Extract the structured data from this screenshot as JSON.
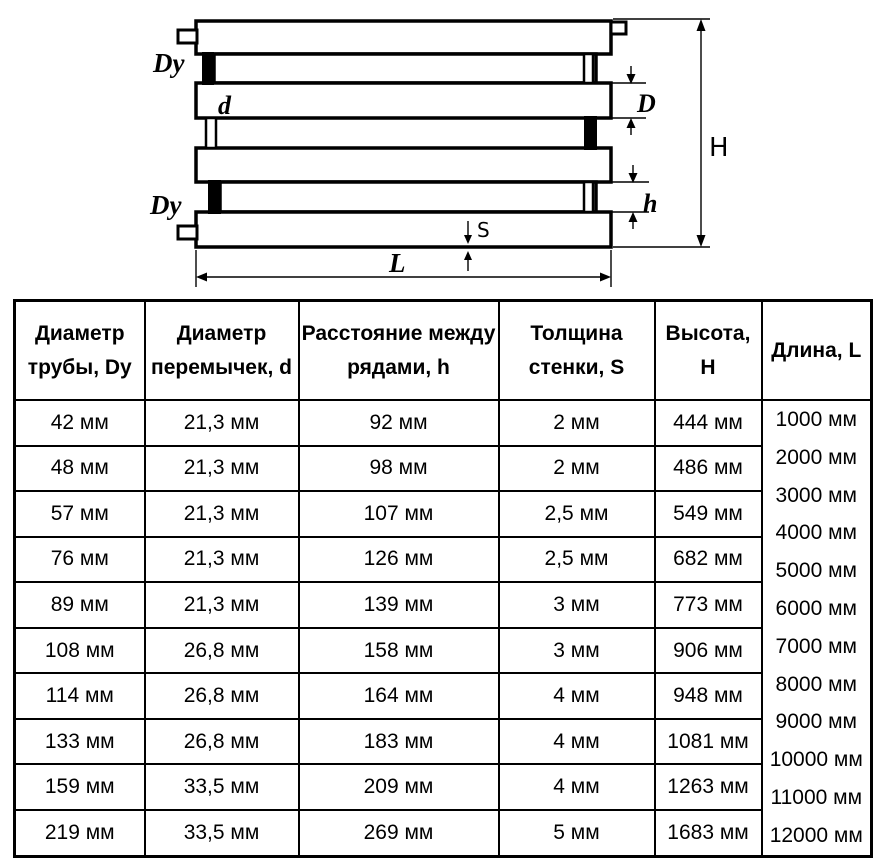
{
  "diagram": {
    "labels": {
      "dy": "Dy",
      "d": "d",
      "D": "D",
      "h": "h",
      "H": "H",
      "S": "S",
      "L": "L"
    }
  },
  "table": {
    "headers": [
      "Диаметр\nтрубы, Dy",
      "Диаметр\nперемычек, d",
      "Расстояние между\nрядами, h",
      "Толщина\nстенки, S",
      "Высота, H",
      "Длина, L"
    ],
    "rows": [
      [
        "42 мм",
        "21,3 мм",
        "92 мм",
        "2 мм",
        "444 мм"
      ],
      [
        "48 мм",
        "21,3 мм",
        "98 мм",
        "2 мм",
        "486 мм"
      ],
      [
        "57 мм",
        "21,3 мм",
        "107 мм",
        "2,5 мм",
        "549 мм"
      ],
      [
        "76 мм",
        "21,3 мм",
        "126 мм",
        "2,5 мм",
        "682 мм"
      ],
      [
        "89 мм",
        "21,3 мм",
        "139 мм",
        "3 мм",
        "773 мм"
      ],
      [
        "108 мм",
        "26,8 мм",
        "158 мм",
        "3 мм",
        "906 мм"
      ],
      [
        "114 мм",
        "26,8 мм",
        "164 мм",
        "4 мм",
        "948 мм"
      ],
      [
        "133 мм",
        "26,8 мм",
        "183 мм",
        "4 мм",
        "1081 мм"
      ],
      [
        "159 мм",
        "33,5 мм",
        "209 мм",
        "4 мм",
        "1263 мм"
      ],
      [
        "219 мм",
        "33,5 мм",
        "269 мм",
        "5 мм",
        "1683 мм"
      ]
    ],
    "lengths": [
      "1000 мм",
      "2000 мм",
      "3000 мм",
      "4000 мм",
      "5000 мм",
      "6000 мм",
      "7000 мм",
      "8000 мм",
      "9000 мм",
      "10000 мм",
      "11000 мм",
      "12000 мм"
    ]
  }
}
